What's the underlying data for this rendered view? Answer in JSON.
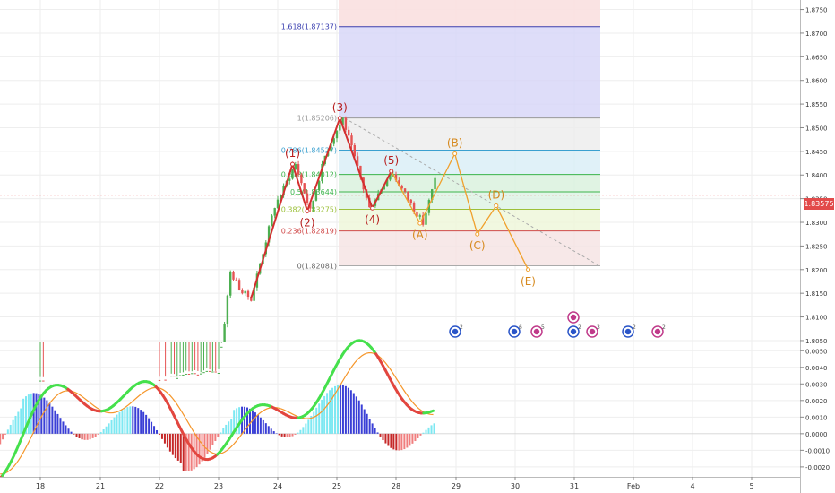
{
  "colors": {
    "background": "#ffffff",
    "grid": "#eeeeee",
    "candle_up": "#4caf50",
    "candle_down": "#e55353",
    "impulse_wave": "#d32f2f",
    "corrective_wave": "#f0a02c",
    "macd_bull": "#45e04c",
    "macd_bear": "#e2463f",
    "signal_line": "#f5962a",
    "hist_pos_light": "#7de8f2",
    "hist_pos_dark": "#3a3fd6",
    "hist_neg_light": "#f07e7e",
    "hist_neg_dark": "#c62828",
    "price_line": "#e24a4a"
  },
  "price_label": "1.83575",
  "chart_data": [
    {
      "type": "candlestick",
      "price_axis": {
        "ylim": [
          1.8048,
          1.877
        ],
        "ticks": [
          "1.8750",
          "1.8700",
          "1.8650",
          "1.8600",
          "1.8550",
          "1.8500",
          "1.8450",
          "1.8400",
          "1.8350",
          "1.8300",
          "1.8250",
          "1.8200",
          "1.8150",
          "1.8100",
          "1.8050"
        ]
      },
      "time_axis": {
        "labels": [
          "18",
          "21",
          "22",
          "23",
          "24",
          "25",
          "28",
          "29",
          "30",
          "31",
          "Feb",
          "4",
          "5"
        ]
      },
      "current_price": 1.83575,
      "elliott_impulse": [
        {
          "label": "(1)",
          "price": 1.8423
        },
        {
          "label": "(2)",
          "price": 1.8324
        },
        {
          "label": "(3)",
          "price": 1.852
        },
        {
          "label": "(4)",
          "price": 1.833
        },
        {
          "label": "(5)",
          "price": 1.8408
        }
      ],
      "elliott_correction": [
        {
          "label": "(A)",
          "price": 1.8298
        },
        {
          "label": "(B)",
          "price": 1.8445
        },
        {
          "label": "(C)",
          "price": 1.8275
        },
        {
          "label": "(D)",
          "price": 1.8335
        },
        {
          "label": "(E)",
          "price": 1.82
        }
      ],
      "fibonacci_levels": [
        {
          "ratio": "1.618",
          "price": "1.87137",
          "label": "1.618(1.87137)"
        },
        {
          "ratio": "1",
          "price": "1.85206",
          "label": "1(1.85206)"
        },
        {
          "ratio": "0.786",
          "price": "1.84527",
          "label": "0.786(1.84527)"
        },
        {
          "ratio": "0.618",
          "price": "1.84012",
          "label": "0.618(1.84012)"
        },
        {
          "ratio": "0.5",
          "price": "1.83644",
          "label": "0.5(1.83644)"
        },
        {
          "ratio": "0.382",
          "price": "1.83275",
          "label": "0.382(1.83275)"
        },
        {
          "ratio": "0.236",
          "price": "1.82819",
          "label": "0.236(1.82819)"
        },
        {
          "ratio": "0",
          "price": "1.82081",
          "label": "0(1.82081)"
        }
      ],
      "event_badges": [
        "2",
        "6",
        "5",
        "2",
        "3",
        "2",
        "2"
      ]
    },
    {
      "type": "oscillator",
      "ylim": [
        -0.0026,
        0.0055
      ],
      "ticks": [
        "0.0050",
        "0.0040",
        "0.0030",
        "0.0020",
        "0.0010",
        "0.0000",
        "-0.0010",
        "-0.0020"
      ]
    }
  ]
}
